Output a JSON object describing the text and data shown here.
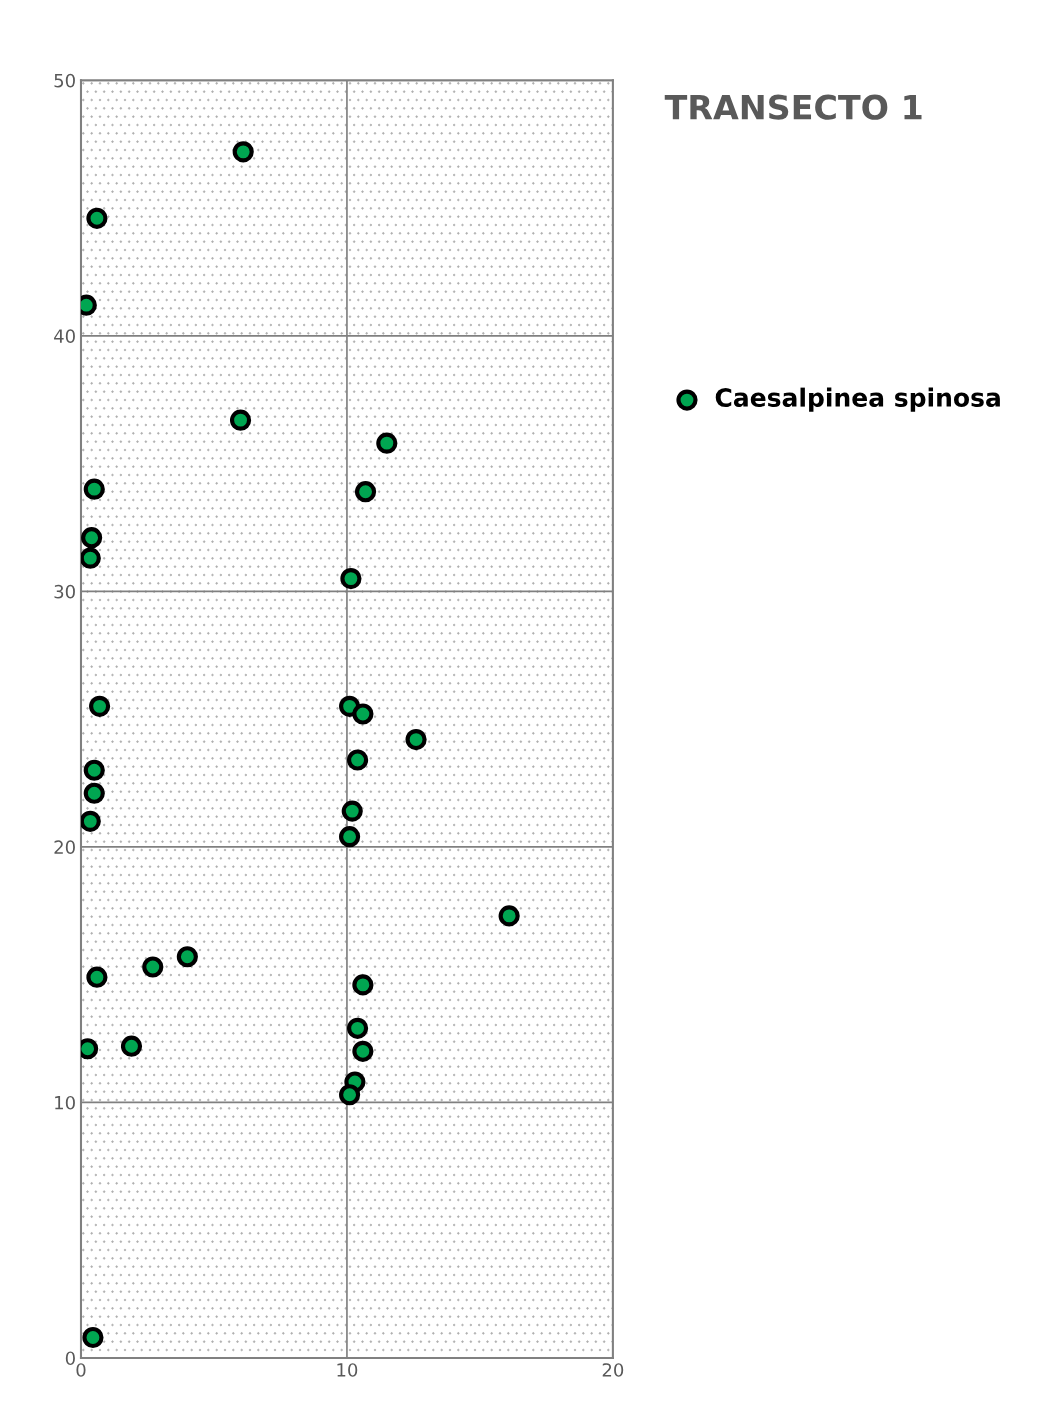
{
  "chart_data": {
    "type": "scatter",
    "title": "TRANSECTO 1",
    "series": [
      {
        "name": "Caesalpinea spinosa",
        "color": "#00a651",
        "x": [
          6.1,
          0.6,
          0.2,
          6.0,
          11.5,
          0.5,
          10.7,
          0.4,
          0.35,
          10.15,
          0.7,
          10.1,
          10.6,
          12.6,
          10.4,
          0.5,
          0.5,
          0.35,
          10.2,
          10.1,
          16.1,
          4.0,
          2.7,
          0.6,
          10.6,
          10.4,
          1.9,
          0.25,
          10.6,
          10.3,
          10.1,
          0.45
        ],
        "values": [
          47.2,
          44.6,
          41.2,
          36.7,
          35.8,
          34.0,
          33.9,
          32.1,
          31.3,
          30.5,
          25.5,
          25.5,
          25.2,
          24.2,
          23.4,
          23.0,
          22.1,
          21.0,
          21.4,
          20.4,
          17.3,
          15.7,
          15.3,
          14.9,
          14.6,
          12.9,
          12.2,
          12.1,
          12.0,
          10.8,
          10.3,
          0.8
        ]
      }
    ],
    "xlim": [
      0,
      20
    ],
    "xticks": [
      0,
      10,
      20
    ],
    "ylim": [
      0,
      50
    ],
    "yticks": [
      0,
      10,
      20,
      30,
      40,
      50
    ],
    "grid": true,
    "legend": "right",
    "marker": "circle"
  }
}
